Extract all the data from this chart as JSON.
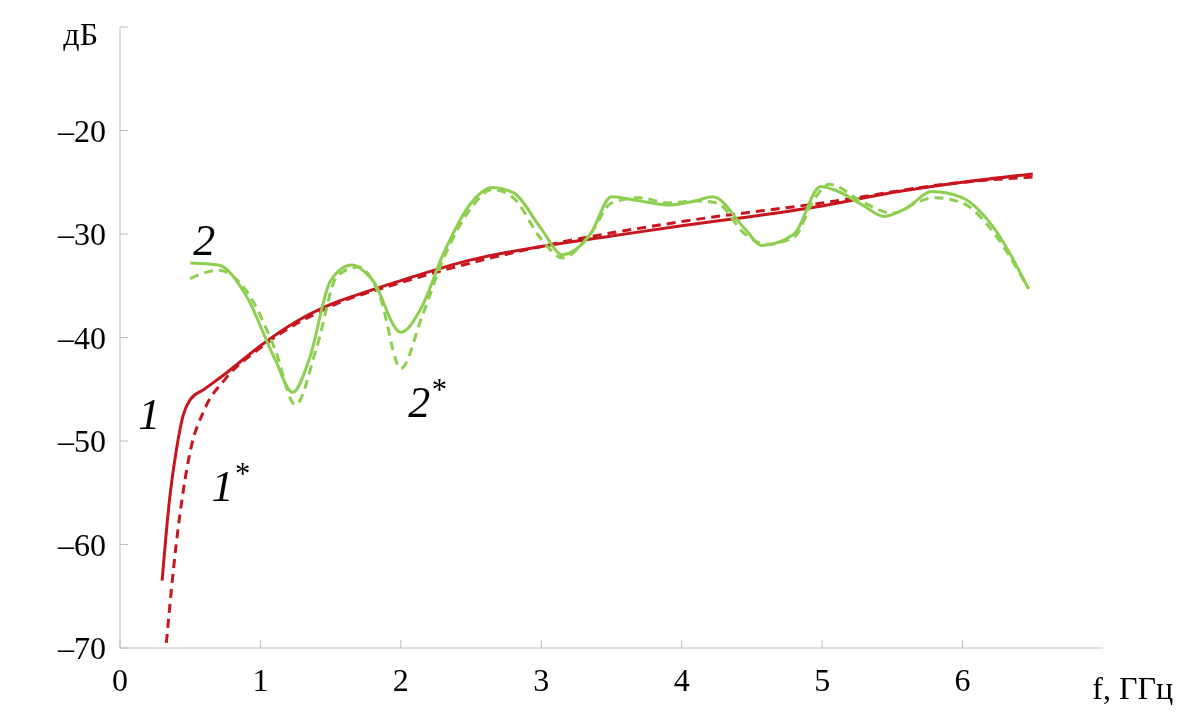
{
  "chart_data": {
    "type": "line",
    "xlabel": "f, ГГц",
    "ylabel": "дБ",
    "xlim": [
      0,
      7
    ],
    "xticks": [
      0,
      1,
      2,
      3,
      4,
      5,
      6
    ],
    "ylim": [
      -70,
      -10
    ],
    "yticks": [
      {
        "value": -70,
        "label": "–70"
      },
      {
        "value": -60,
        "label": "–60"
      },
      {
        "value": -50,
        "label": "–50"
      },
      {
        "value": -40,
        "label": "–40"
      },
      {
        "value": -30,
        "label": "–30"
      },
      {
        "value": -20,
        "label": "–20"
      },
      {
        "value": -10,
        "label": null
      }
    ],
    "marker": "none",
    "series": [
      {
        "color": "#c8161e",
        "line_style": "solid",
        "x": [
          0.3,
          0.35,
          0.4,
          0.45,
          0.5,
          0.6,
          0.75,
          1.0,
          1.25,
          1.5,
          1.75,
          2.0,
          2.5,
          3.0,
          3.5,
          4.0,
          4.5,
          5.0,
          5.5,
          6.0,
          6.5
        ],
        "values": [
          -63.5,
          -56,
          -51,
          -47.5,
          -46,
          -45,
          -43.5,
          -40.8,
          -38.5,
          -36.8,
          -35.6,
          -34.5,
          -32.5,
          -31.2,
          -30.2,
          -29.2,
          -28.3,
          -27.3,
          -26,
          -25,
          -24.2
        ]
      },
      {
        "color": "#c8161e",
        "line_style": "dashed",
        "x": [
          0.33,
          0.4,
          0.5,
          0.6,
          0.75,
          1.0,
          1.5,
          2.0,
          3.0,
          4.0,
          5.0,
          6.0,
          6.5
        ],
        "values": [
          -69.5,
          -60,
          -51,
          -47,
          -44,
          -41,
          -37,
          -34.7,
          -31.2,
          -28.8,
          -27,
          -25,
          -24.5
        ]
      },
      {
        "color": "#8dcf50",
        "line_style": "solid",
        "x": [
          0.5,
          0.7,
          0.9,
          1.1,
          1.23,
          1.35,
          1.5,
          1.65,
          1.8,
          2.0,
          2.15,
          2.3,
          2.5,
          2.65,
          2.8,
          3.0,
          3.15,
          3.35,
          3.5,
          3.7,
          3.9,
          4.1,
          4.22,
          4.45,
          4.57,
          4.8,
          4.99,
          5.1,
          5.3,
          5.44,
          5.6,
          5.78,
          6.0,
          6.2,
          6.47
        ],
        "values": [
          -32.8,
          -33,
          -36,
          -42,
          -45.3,
          -42,
          -34.5,
          -33,
          -34.5,
          -39.5,
          -37,
          -32,
          -27,
          -25.5,
          -26,
          -29.5,
          -32,
          -30,
          -26.4,
          -26.8,
          -27.2,
          -26.8,
          -26.4,
          -29.5,
          -31.1,
          -30,
          -25.4,
          -25.8,
          -27.3,
          -28.3,
          -27.5,
          -25.9,
          -26.5,
          -29,
          -35.3
        ]
      },
      {
        "color": "#8dcf50",
        "line_style": "dashed",
        "x": [
          0.5,
          0.7,
          0.9,
          1.1,
          1.25,
          1.4,
          1.55,
          1.7,
          1.85,
          2.0,
          2.15,
          2.3,
          2.5,
          2.65,
          2.8,
          3.0,
          3.15,
          3.35,
          3.5,
          3.7,
          3.9,
          4.1,
          4.25,
          4.45,
          4.6,
          4.8,
          4.95,
          5.05,
          5.3,
          5.5,
          5.7,
          5.8,
          6.0,
          6.2,
          6.47
        ],
        "values": [
          -34.3,
          -33.5,
          -35.5,
          -41,
          -46.5,
          -41,
          -34,
          -33.2,
          -36,
          -43,
          -38,
          -32.5,
          -27.5,
          -25.7,
          -26.5,
          -30.5,
          -32.3,
          -30,
          -27,
          -26.5,
          -27,
          -26.8,
          -27,
          -30,
          -31,
          -30.3,
          -26.5,
          -25.2,
          -27,
          -28,
          -26.8,
          -26.5,
          -27,
          -29.5,
          -35.3
        ]
      }
    ],
    "annotations": [
      {
        "text": "1",
        "x": 0.45,
        "y": -47.5
      },
      {
        "text": "1$^{*}$",
        "x": 0.5,
        "y": -51
      },
      {
        "text": "2",
        "x": 0.5,
        "y": -32.8
      },
      {
        "text": "2$^{*}$",
        "x": 2.0,
        "y": -43
      }
    ]
  }
}
